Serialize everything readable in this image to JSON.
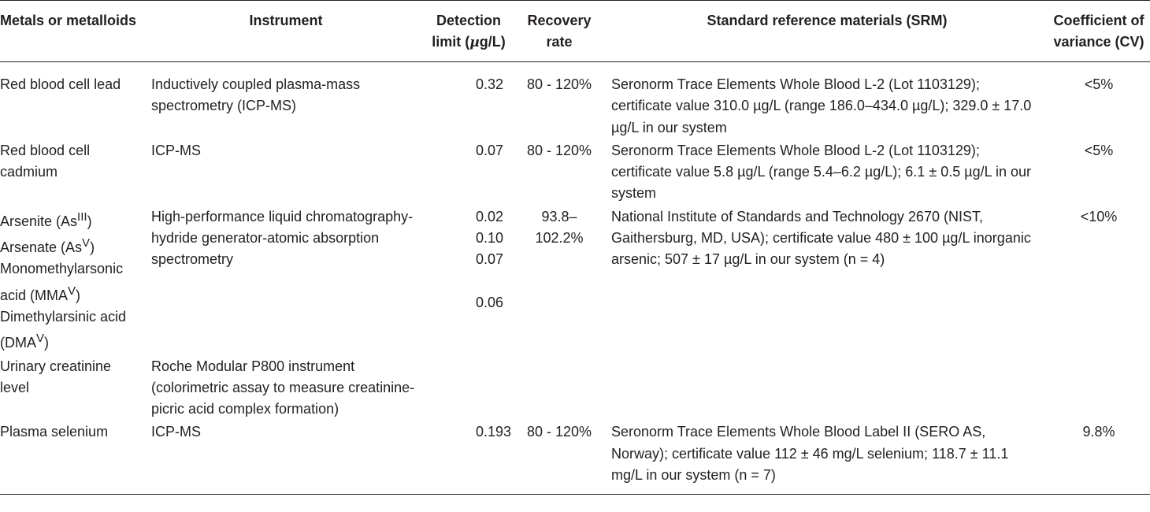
{
  "table": {
    "headers": {
      "metals": "Metals or metalloids",
      "instrument": "Instrument",
      "detection": "Detection limit (µg/L)",
      "recovery": "Recovery rate",
      "srm": "Standard reference materials (SRM)",
      "cv": "Coefficient of variance (CV)"
    },
    "rows": [
      {
        "metal": "Red blood cell lead",
        "instrument": "Inductively coupled plasma-mass spectrometry (ICP-MS)",
        "detection": "0.32",
        "recovery": "80 - 120%",
        "srm": "Seronorm Trace Elements Whole Blood L-2 (Lot 1103129); certificate value 310.0 µg/L (range 186.0–434.0 µg/L); 329.0 ± 17.0 µg/L in our system",
        "cv": "<5%"
      },
      {
        "metal": "Red blood cell cadmium",
        "instrument": "ICP-MS",
        "detection": "0.07",
        "recovery": "80 - 120%",
        "srm": "Seronorm Trace Elements Whole Blood L-2 (Lot 1103129); certificate value 5.8 µg/L (range 5.4–6.2 µg/L); 6.1 ± 0.5 µg/L in our system",
        "cv": "<5%"
      },
      {
        "metals": [
          {
            "name": "Arsenite (As",
            "sup": "III",
            "tail": ")",
            "detection": "0.02"
          },
          {
            "name": "Arsenate (As",
            "sup": "V",
            "tail": ")",
            "detection": "0.10"
          },
          {
            "name": "Monomethylarsonic acid (MMA",
            "sup": "V",
            "tail": ")",
            "detection": "0.07"
          },
          {
            "name": "Dimethylarsinic acid (DMA",
            "sup": "V",
            "tail": ")",
            "detection": "0.06"
          }
        ],
        "instrument": "High-performance liquid chromatography-hydride generator-atomic absorption spectrometry",
        "recovery": "93.8–102.2%",
        "srm": "National Institute of Standards and Technology 2670 (NIST, Gaithersburg, MD, USA); certificate value 480 ± 100 µg/L inorganic arsenic; 507 ± 17 µg/L in our system (n = 4)",
        "cv": "<10%"
      },
      {
        "metal": "Urinary creatinine level",
        "instrument": "Roche Modular P800 instrument (colorimetric assay to measure creatinine-picric acid complex formation)",
        "detection": "",
        "recovery": "",
        "srm": "",
        "cv": ""
      },
      {
        "metal": "Plasma selenium",
        "instrument": "ICP-MS",
        "detection": "0.193",
        "recovery": "80 - 120%",
        "srm": "Seronorm Trace Elements Whole Blood Label II (SERO AS, Norway); certificate value 112 ± 46 mg/L selenium; 118.7 ± 11.1 mg/L in our system (n = 7)",
        "cv": "9.8%"
      }
    ]
  }
}
